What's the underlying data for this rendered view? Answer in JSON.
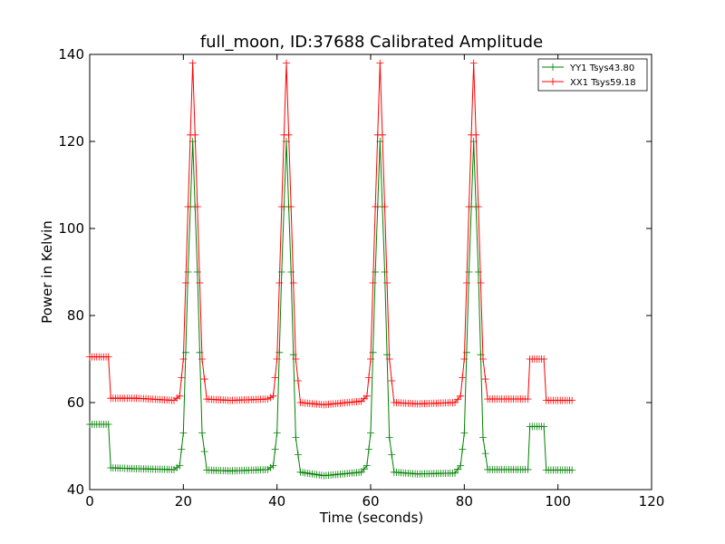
{
  "chart_data": {
    "type": "line",
    "title": "full_moon, ID:37688 Calibrated Amplitude",
    "xlabel": "Time (seconds)",
    "ylabel": "Power in Kelvin",
    "xlim": [
      0,
      120
    ],
    "ylim": [
      40,
      140
    ],
    "xticks": [
      "0",
      "20",
      "40",
      "60",
      "80",
      "100",
      "120"
    ],
    "yticks": [
      "40",
      "60",
      "80",
      "100",
      "120",
      "140"
    ],
    "grid": false,
    "legend_position": "top-right",
    "marker": "plus",
    "series": [
      {
        "name": "YY1 Tsys43.80",
        "color": "#008000",
        "points": [
          [
            0,
            55
          ],
          [
            4,
            55
          ],
          [
            4.5,
            45
          ],
          [
            10,
            44.8
          ],
          [
            18,
            44.6
          ],
          [
            19.2,
            45.5
          ],
          [
            20,
            53
          ],
          [
            21,
            90
          ],
          [
            22,
            120
          ],
          [
            23,
            90
          ],
          [
            24,
            53
          ],
          [
            25,
            44.5
          ],
          [
            30,
            44.3
          ],
          [
            38,
            44.6
          ],
          [
            39.2,
            45.5
          ],
          [
            40,
            53
          ],
          [
            41,
            90
          ],
          [
            42,
            120
          ],
          [
            43,
            90
          ],
          [
            44,
            52
          ],
          [
            45,
            44
          ],
          [
            50,
            43.2
          ],
          [
            58,
            44
          ],
          [
            59.2,
            45.5
          ],
          [
            60,
            53
          ],
          [
            61,
            90
          ],
          [
            62,
            120
          ],
          [
            63,
            90
          ],
          [
            64,
            52
          ],
          [
            65,
            44
          ],
          [
            70,
            43.6
          ],
          [
            78,
            43.8
          ],
          [
            79.2,
            45.5
          ],
          [
            80,
            53
          ],
          [
            81,
            90
          ],
          [
            82,
            120
          ],
          [
            83,
            90
          ],
          [
            84,
            52
          ],
          [
            85,
            44.6
          ],
          [
            93,
            44.6
          ],
          [
            93.6,
            44.6
          ],
          [
            94,
            54.5
          ],
          [
            97,
            54.5
          ],
          [
            97.5,
            44.5
          ],
          [
            103,
            44.5
          ]
        ]
      },
      {
        "name": "XX1 Tsys59.18",
        "color": "#ff0000",
        "points": [
          [
            0,
            70.5
          ],
          [
            4,
            70.5
          ],
          [
            4.5,
            61
          ],
          [
            10,
            61
          ],
          [
            18,
            60.5
          ],
          [
            19.2,
            61.5
          ],
          [
            20,
            70
          ],
          [
            21,
            105
          ],
          [
            22,
            138
          ],
          [
            23,
            105
          ],
          [
            24,
            70
          ],
          [
            25,
            60.8
          ],
          [
            30,
            60.5
          ],
          [
            38,
            60.8
          ],
          [
            39.2,
            61.5
          ],
          [
            40,
            70
          ],
          [
            41,
            105
          ],
          [
            42,
            138
          ],
          [
            43,
            105
          ],
          [
            44,
            70
          ],
          [
            45,
            60
          ],
          [
            50,
            59.5
          ],
          [
            58,
            60.3
          ],
          [
            59.2,
            61.5
          ],
          [
            60,
            70
          ],
          [
            61,
            105
          ],
          [
            62,
            138
          ],
          [
            63,
            105
          ],
          [
            64,
            70
          ],
          [
            65,
            60
          ],
          [
            70,
            59.7
          ],
          [
            78,
            60
          ],
          [
            79.2,
            61.5
          ],
          [
            80,
            70
          ],
          [
            81,
            105
          ],
          [
            82,
            138
          ],
          [
            83,
            105
          ],
          [
            84,
            70
          ],
          [
            85,
            60.8
          ],
          [
            93,
            60.8
          ],
          [
            93.6,
            60.8
          ],
          [
            94,
            70
          ],
          [
            97,
            70
          ],
          [
            97.5,
            60.5
          ],
          [
            103,
            60.5
          ]
        ]
      }
    ]
  }
}
